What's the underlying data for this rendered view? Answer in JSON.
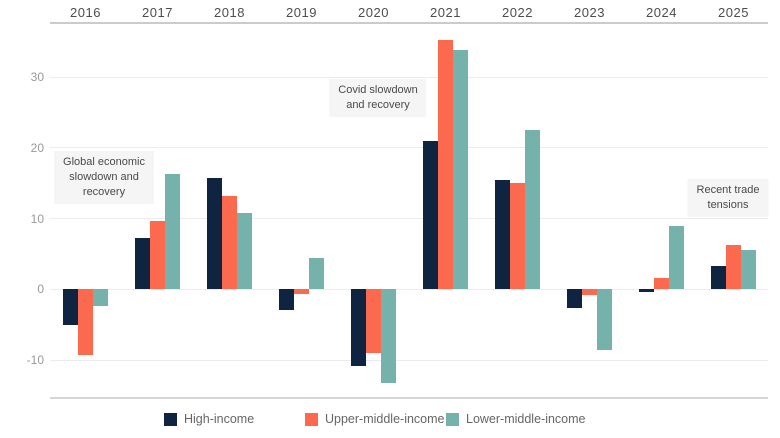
{
  "chart_data": {
    "type": "bar",
    "title": "",
    "xlabel": "",
    "ylabel": "",
    "categories": [
      "2016",
      "2017",
      "2018",
      "2019",
      "2020",
      "2021",
      "2022",
      "2023",
      "2024",
      "2025"
    ],
    "series": [
      {
        "name": "High-income",
        "color": "#0e2440",
        "values": [
          -5.1,
          7.2,
          15.7,
          -2.9,
          -10.8,
          21.0,
          15.5,
          -2.7,
          -0.4,
          3.3
        ]
      },
      {
        "name": "Upper-middle-income",
        "color": "#fb6a4e",
        "values": [
          -9.3,
          9.6,
          13.2,
          -0.6,
          -9.0,
          35.2,
          15.0,
          -0.8,
          1.6,
          6.3
        ]
      },
      {
        "name": "Lower-middle-income",
        "color": "#74b2ab",
        "values": [
          -2.4,
          16.3,
          10.8,
          4.4,
          -13.2,
          33.9,
          22.6,
          -8.6,
          9.0,
          5.6
        ]
      }
    ],
    "yticks": [
      30,
      20,
      10,
      0,
      -10
    ],
    "ylim": [
      -15.5,
      37.7
    ],
    "grid": true,
    "legend_position": "bottom"
  },
  "annotations": [
    {
      "lines": [
        "Global economic",
        "slowdown and",
        "recovery"
      ]
    },
    {
      "lines": [
        "Covid slowdown",
        "and recovery"
      ]
    },
    {
      "lines": [
        "Recent trade",
        "tensions"
      ]
    }
  ]
}
